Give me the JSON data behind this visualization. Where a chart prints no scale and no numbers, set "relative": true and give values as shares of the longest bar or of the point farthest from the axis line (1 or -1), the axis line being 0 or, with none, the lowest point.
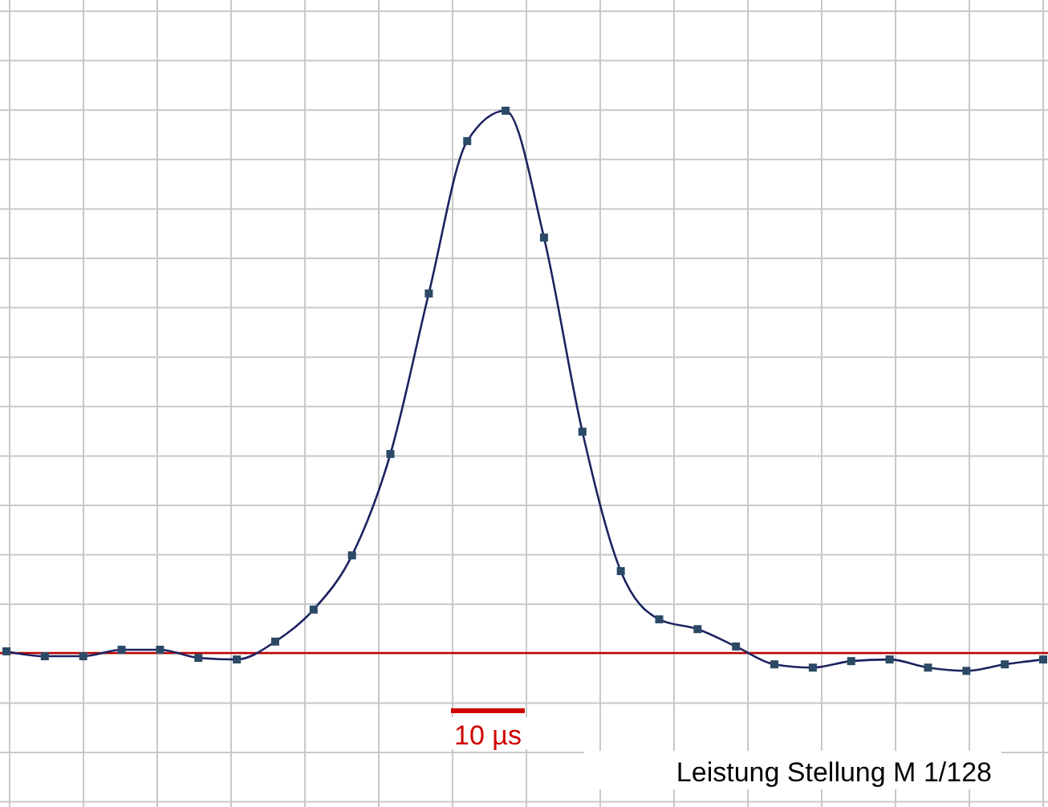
{
  "chart_data": {
    "type": "line",
    "relative": true,
    "categories": [
      null,
      null,
      null,
      null,
      null,
      null,
      null,
      null,
      null,
      null,
      null,
      null,
      null,
      null,
      null,
      null,
      null,
      null,
      null,
      null,
      null,
      null,
      null,
      null,
      null,
      null,
      null,
      null
    ],
    "series": [
      {
        "color": "#1c2360",
        "values": [
          0.003,
          -0.006,
          -0.006,
          0.006,
          0.006,
          -0.009,
          -0.012,
          0.021,
          0.08,
          0.18,
          0.367,
          0.663,
          0.944,
          1,
          0.766,
          0.408,
          0.151,
          0.062,
          0.044,
          0.012,
          -0.021,
          -0.027,
          -0.015,
          -0.012,
          -0.027,
          -0.033,
          -0.021,
          -0.012
        ]
      }
    ],
    "marker": "square",
    "line_style": "solid",
    "grid": true,
    "ref_lines": [
      {
        "axis": "y",
        "value": 0,
        "color": "#c00000"
      }
    ],
    "annotations": [
      "10 µs",
      "Leistung Stellung M 1/128"
    ]
  }
}
